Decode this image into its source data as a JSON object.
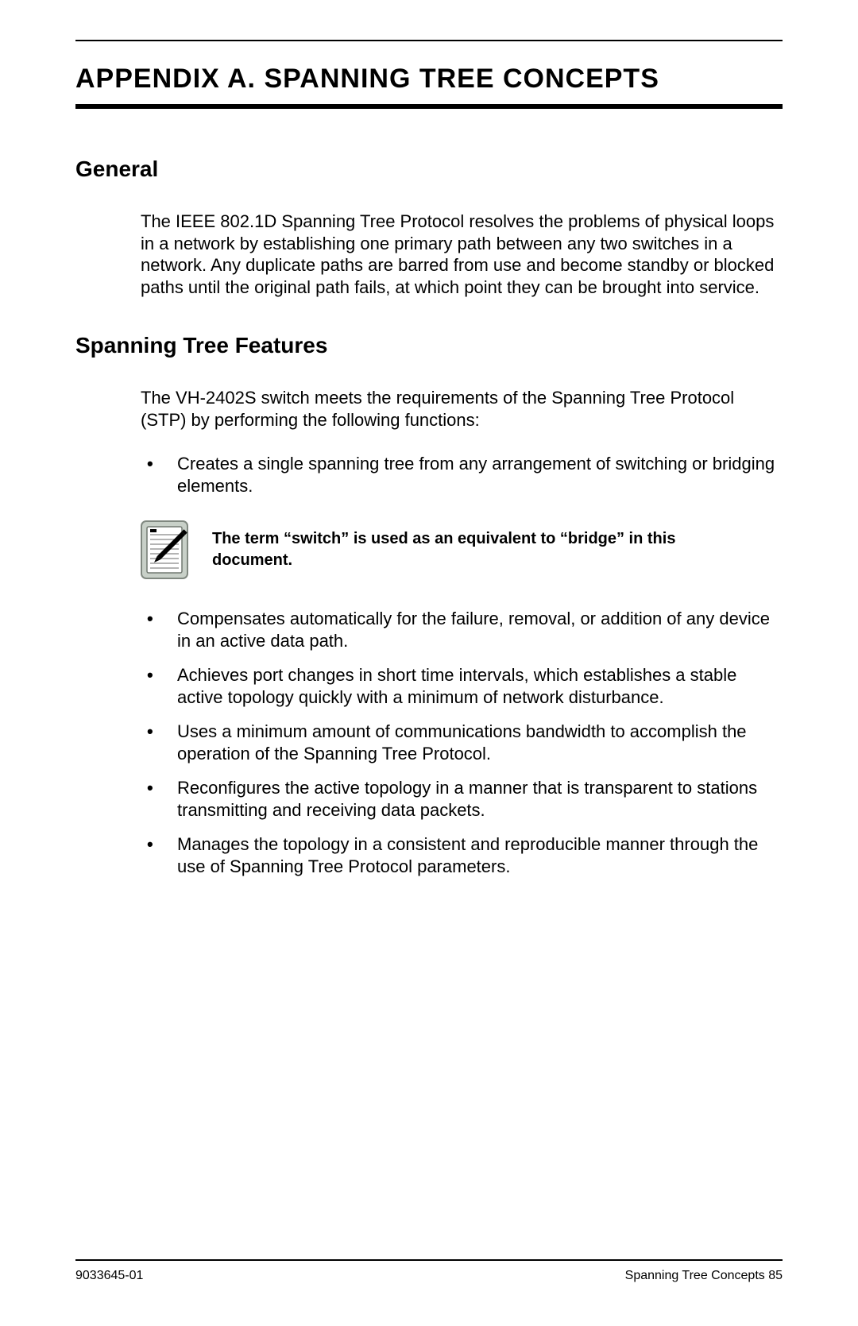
{
  "title": "APPENDIX A.  SPANNING TREE CONCEPTS",
  "sections": {
    "general": {
      "heading": "General",
      "body": "The IEEE 802.1D Spanning Tree Protocol resolves the problems of physical loops in a network by establishing one primary path between any two switches in a network. Any duplicate paths are barred from use and become standby or blocked paths until the original path fails, at which point they can be brought into service."
    },
    "features": {
      "heading": "Spanning Tree Features",
      "intro": "The VH-2402S switch meets the requirements of the Spanning Tree Protocol (STP) by performing the following functions:",
      "first_bullet": "Creates a single spanning tree from any arrangement of switching or bridging elements.",
      "note": "The term “switch” is used as an equivalent to “bridge” in this document.",
      "rest_bullets": [
        "Compensates automatically for the failure, removal, or addition of any device in an active data path.",
        "Achieves port changes in short time intervals, which establishes a stable active topology quickly with a minimum of network disturbance.",
        "Uses a minimum amount of communications bandwidth to accomplish the operation of the Spanning Tree Protocol.",
        "Reconfigures the active topology in a manner that is transparent to stations transmitting and receiving data packets.",
        "Manages the topology in a consistent and reproducible manner through the use of Spanning Tree Protocol parameters."
      ]
    }
  },
  "footer": {
    "left": "9033645-01",
    "right": "Spanning Tree Concepts  85"
  },
  "note_icon": {
    "frame_color": "#a8b0a8",
    "inner_bg": "#ffffff",
    "line_color": "#808080",
    "pencil_color": "#000000"
  }
}
